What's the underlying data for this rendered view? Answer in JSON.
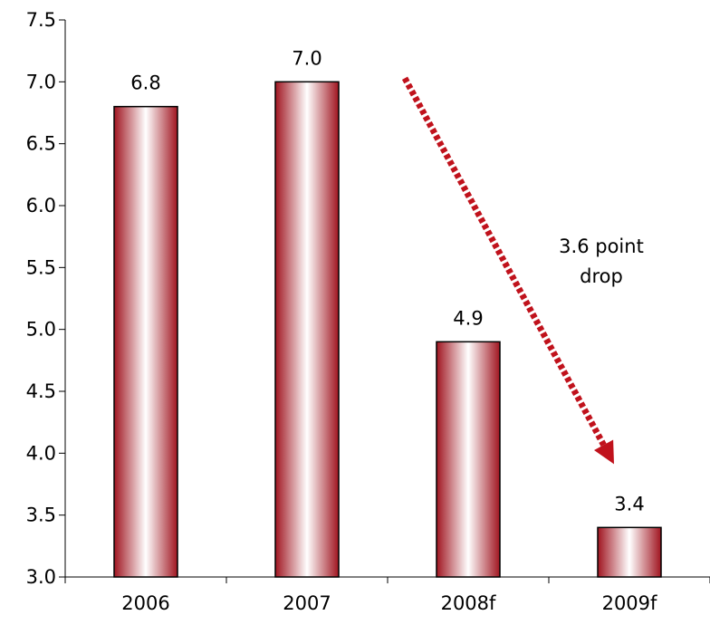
{
  "chart_data": {
    "type": "bar",
    "categories": [
      "2006",
      "2007",
      "2008f",
      "2009f"
    ],
    "values": [
      6.8,
      7.0,
      4.9,
      3.4
    ],
    "data_labels": [
      "6.8",
      "7.0",
      "4.9",
      "3.4"
    ],
    "ylim": [
      3.0,
      7.5
    ],
    "yticks": [
      "3.0",
      "3.5",
      "4.0",
      "4.5",
      "5.0",
      "5.5",
      "6.0",
      "6.5",
      "7.0",
      "7.5"
    ],
    "title": "",
    "xlabel": "",
    "ylabel": "",
    "grid": false,
    "annotation": {
      "line1": "3.6 point",
      "line2": "drop",
      "arrow_from": {
        "category": "2007",
        "value": 7.0
      },
      "arrow_to": {
        "category": "2009f",
        "value": 3.4
      }
    },
    "colors": {
      "bar_edge": "#a01520",
      "bar_center": "#ffffff",
      "bar_outline": "#000000",
      "arrow": "#c0121c"
    }
  }
}
